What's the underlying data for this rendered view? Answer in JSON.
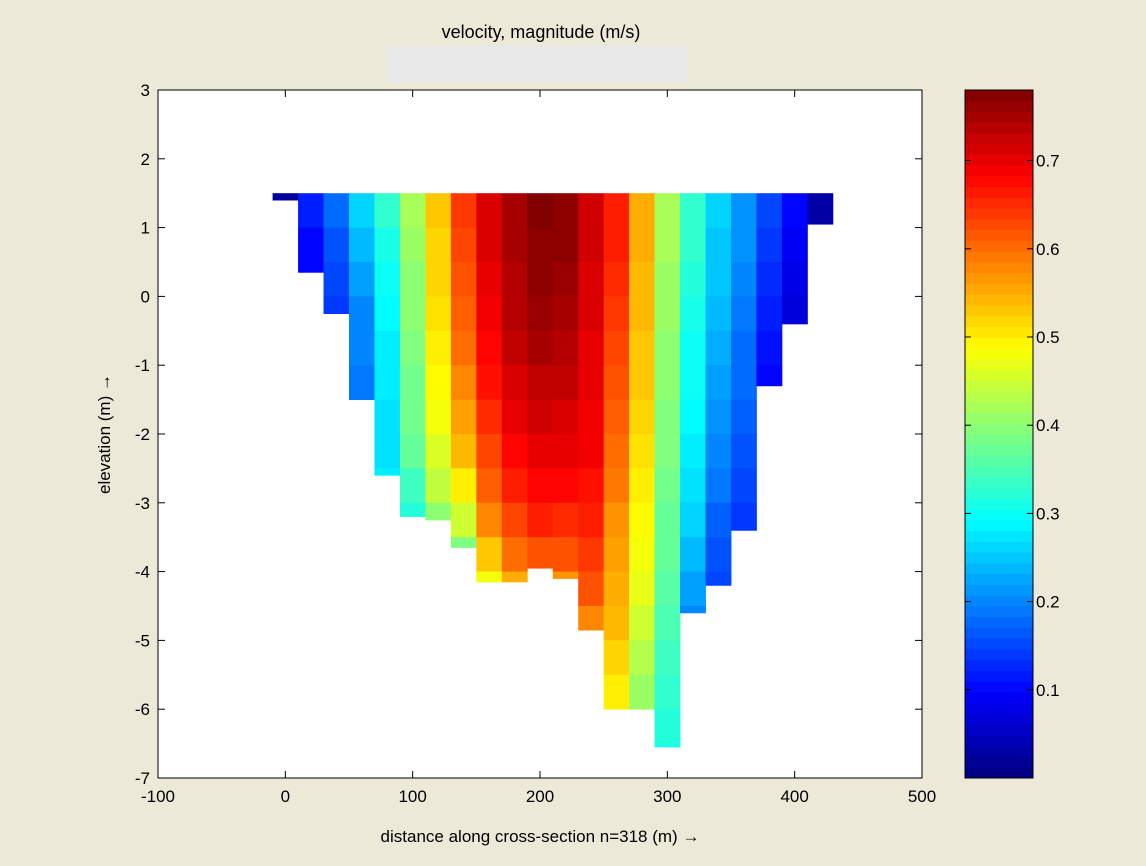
{
  "chart_data": {
    "type": "heatmap",
    "title": "velocity, magnitude (m/s)",
    "xlabel": "distance along cross-section n=318 (m) →",
    "ylabel": "elevation (m) →",
    "xlim": [
      -100,
      500
    ],
    "ylim": [
      -7,
      3
    ],
    "xticks": [
      "-100",
      "0",
      "100",
      "200",
      "300",
      "400",
      "500"
    ],
    "yticks": [
      "3",
      "2",
      "1",
      "0",
      "-1",
      "-2",
      "-3",
      "-4",
      "-5",
      "-6",
      "-7"
    ],
    "colorbar": {
      "range": [
        0,
        0.78
      ],
      "ticks": [
        "0.1",
        "0.2",
        "0.3",
        "0.4",
        "0.5",
        "0.6",
        "0.7"
      ],
      "colormap": "jet"
    },
    "cell_height_m": 0.5,
    "columns": [
      {
        "x0": -10,
        "x1": 10,
        "bottom": 1.4,
        "top": 1.5,
        "v": [
          0.02
        ]
      },
      {
        "x0": 10,
        "x1": 30,
        "bottom": 0.35,
        "top": 1.5,
        "v": [
          0.12,
          0.1,
          0.1
        ]
      },
      {
        "x0": 30,
        "x1": 50,
        "bottom": -0.25,
        "top": 1.5,
        "v": [
          0.18,
          0.16,
          0.15,
          0.14
        ]
      },
      {
        "x0": 50,
        "x1": 70,
        "bottom": -1.5,
        "top": 1.5,
        "v": [
          0.26,
          0.24,
          0.22,
          0.2,
          0.2,
          0.19
        ]
      },
      {
        "x0": 70,
        "x1": 90,
        "bottom": -2.6,
        "top": 1.5,
        "v": [
          0.33,
          0.31,
          0.3,
          0.29,
          0.28,
          0.28,
          0.27,
          0.27,
          0.28
        ]
      },
      {
        "x0": 90,
        "x1": 110,
        "bottom": -3.2,
        "top": 1.5,
        "v": [
          0.42,
          0.41,
          0.4,
          0.4,
          0.39,
          0.38,
          0.38,
          0.37,
          0.34,
          0.32
        ]
      },
      {
        "x0": 110,
        "x1": 130,
        "bottom": -3.25,
        "top": 1.5,
        "v": [
          0.53,
          0.52,
          0.52,
          0.51,
          0.5,
          0.49,
          0.48,
          0.46,
          0.44,
          0.4
        ]
      },
      {
        "x0": 130,
        "x1": 150,
        "bottom": -3.65,
        "top": 1.5,
        "v": [
          0.64,
          0.63,
          0.62,
          0.61,
          0.6,
          0.58,
          0.56,
          0.54,
          0.5,
          0.45,
          0.39
        ]
      },
      {
        "x0": 150,
        "x1": 170,
        "bottom": -4.15,
        "top": 1.5,
        "v": [
          0.71,
          0.71,
          0.7,
          0.69,
          0.68,
          0.67,
          0.65,
          0.63,
          0.61,
          0.58,
          0.53,
          0.48,
          0.42
        ]
      },
      {
        "x0": 170,
        "x1": 190,
        "bottom": -4.15,
        "top": 1.5,
        "v": [
          0.75,
          0.75,
          0.74,
          0.74,
          0.73,
          0.71,
          0.7,
          0.68,
          0.66,
          0.63,
          0.6,
          0.55,
          0.47
        ]
      },
      {
        "x0": 190,
        "x1": 210,
        "bottom": -3.95,
        "top": 1.5,
        "v": [
          0.78,
          0.77,
          0.77,
          0.76,
          0.75,
          0.73,
          0.72,
          0.7,
          0.68,
          0.66,
          0.62,
          0.57,
          0.49
        ]
      },
      {
        "x0": 210,
        "x1": 230,
        "bottom": -4.1,
        "top": 1.5,
        "v": [
          0.77,
          0.77,
          0.76,
          0.75,
          0.74,
          0.73,
          0.71,
          0.7,
          0.68,
          0.65,
          0.62,
          0.57,
          0.45
        ]
      },
      {
        "x0": 230,
        "x1": 250,
        "bottom": -4.85,
        "top": 1.5,
        "v": [
          0.72,
          0.72,
          0.71,
          0.71,
          0.7,
          0.7,
          0.69,
          0.69,
          0.67,
          0.66,
          0.64,
          0.62,
          0.58,
          0.52,
          0.46
        ]
      },
      {
        "x0": 250,
        "x1": 270,
        "bottom": -6.0,
        "top": 1.5,
        "v": [
          0.66,
          0.66,
          0.65,
          0.64,
          0.63,
          0.62,
          0.61,
          0.6,
          0.59,
          0.57,
          0.56,
          0.55,
          0.54,
          0.52,
          0.5,
          0.46,
          0.42,
          0.39
        ]
      },
      {
        "x0": 270,
        "x1": 290,
        "bottom": -6.0,
        "top": 1.5,
        "v": [
          0.55,
          0.55,
          0.54,
          0.54,
          0.53,
          0.53,
          0.52,
          0.51,
          0.5,
          0.49,
          0.48,
          0.47,
          0.45,
          0.43,
          0.41,
          0.38,
          0.36,
          0.33
        ]
      },
      {
        "x0": 290,
        "x1": 310,
        "bottom": -6.55,
        "top": 1.5,
        "v": [
          0.42,
          0.42,
          0.41,
          0.41,
          0.4,
          0.4,
          0.39,
          0.39,
          0.38,
          0.37,
          0.37,
          0.36,
          0.35,
          0.34,
          0.33,
          0.32,
          0.31,
          0.3,
          0.28
        ]
      },
      {
        "x0": 310,
        "x1": 330,
        "bottom": -4.6,
        "top": 1.5,
        "v": [
          0.33,
          0.33,
          0.32,
          0.31,
          0.3,
          0.3,
          0.29,
          0.28,
          0.27,
          0.26,
          0.24,
          0.22,
          0.2
        ]
      },
      {
        "x0": 330,
        "x1": 350,
        "bottom": -4.2,
        "top": 1.5,
        "v": [
          0.26,
          0.25,
          0.25,
          0.24,
          0.23,
          0.22,
          0.21,
          0.2,
          0.19,
          0.17,
          0.16,
          0.15
        ]
      },
      {
        "x0": 350,
        "x1": 370,
        "bottom": -3.4,
        "top": 1.5,
        "v": [
          0.21,
          0.21,
          0.2,
          0.19,
          0.18,
          0.18,
          0.17,
          0.16,
          0.15,
          0.14
        ]
      },
      {
        "x0": 370,
        "x1": 390,
        "bottom": -1.3,
        "top": 1.5,
        "v": [
          0.15,
          0.14,
          0.13,
          0.12,
          0.11,
          0.1
        ]
      },
      {
        "x0": 390,
        "x1": 410,
        "bottom": -0.4,
        "top": 1.5,
        "v": [
          0.1,
          0.09,
          0.08,
          0.07
        ]
      },
      {
        "x0": 410,
        "x1": 430,
        "bottom": 1.05,
        "top": 1.5,
        "v": [
          0.03
        ]
      }
    ]
  }
}
